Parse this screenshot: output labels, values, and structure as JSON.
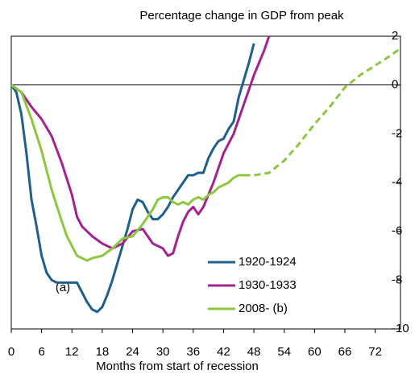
{
  "chart_data": {
    "type": "line",
    "title": "Percentage change in GDP from peak",
    "x_label": "Months from start of recession",
    "annotation": "(a)",
    "xlim": [
      0,
      77
    ],
    "xticks": [
      0,
      6,
      12,
      18,
      24,
      30,
      36,
      42,
      48,
      54,
      60,
      66,
      72
    ],
    "ylim": [
      -10,
      2
    ],
    "yticks": [
      2,
      0,
      -2,
      -4,
      -6,
      -8,
      -10
    ],
    "series": [
      {
        "name": "1920-1924",
        "color": "#1f5f8b",
        "x": [
          0,
          1,
          2,
          3,
          4,
          5,
          6,
          7,
          8,
          9,
          10,
          11,
          12,
          13,
          14,
          15,
          16,
          17,
          18,
          19,
          20,
          21,
          22,
          23,
          24,
          25,
          26,
          27,
          28,
          29,
          30,
          31,
          32,
          33,
          34,
          35,
          36,
          37,
          38,
          39,
          40,
          41,
          42,
          43,
          44,
          45,
          46,
          47,
          48
        ],
        "values": [
          0,
          -0.3,
          -1.2,
          -2.8,
          -4.7,
          -5.8,
          -7,
          -7.7,
          -8,
          -8.1,
          -8.1,
          -8.1,
          -8.1,
          -8.1,
          -8.5,
          -8.9,
          -9.2,
          -9.3,
          -9.1,
          -8.6,
          -8,
          -7.3,
          -6.6,
          -5.9,
          -5.1,
          -4.7,
          -4.8,
          -5.2,
          -5.5,
          -5.5,
          -5.3,
          -5,
          -4.6,
          -4.3,
          -4,
          -3.7,
          -3.7,
          -3.6,
          -3.6,
          -3,
          -2.6,
          -2.3,
          -2.2,
          -1.8,
          -1.5,
          -0.5,
          0.2,
          0.9,
          1.7
        ]
      },
      {
        "name": "1930-1933",
        "color": "#a3238e",
        "x": [
          0,
          2,
          4,
          6,
          8,
          10,
          12,
          13,
          14,
          16,
          18,
          20,
          22,
          24,
          26,
          27,
          28,
          30,
          31,
          32,
          33,
          34,
          35,
          36,
          37,
          38,
          39,
          40,
          41,
          42,
          43,
          44,
          45,
          46,
          47,
          48,
          49,
          50,
          51
        ],
        "values": [
          0,
          -0.3,
          -0.9,
          -1.4,
          -2.1,
          -3.2,
          -4.5,
          -5.4,
          -5.8,
          -6.2,
          -6.5,
          -6.7,
          -6.5,
          -6,
          -5.9,
          -6.2,
          -6.5,
          -6.7,
          -7,
          -6.9,
          -6.2,
          -5.6,
          -5.2,
          -5,
          -5.3,
          -5,
          -4.5,
          -4,
          -3.4,
          -2.8,
          -2.4,
          -2,
          -1.4,
          -0.8,
          -0.2,
          0.4,
          0.9,
          1.4,
          2
        ]
      },
      {
        "name": "2008- (b)",
        "color": "#8dc63f",
        "x": [
          0,
          2,
          4,
          6,
          8,
          10,
          11,
          12,
          13,
          15,
          16,
          18,
          20,
          22,
          24,
          26,
          28,
          29,
          30,
          31,
          32,
          33,
          34,
          35,
          36,
          37,
          38,
          39,
          40,
          41,
          43,
          44,
          45,
          46
        ],
        "values": [
          0,
          -0.3,
          -1.4,
          -2.7,
          -4.3,
          -5.6,
          -6.2,
          -6.6,
          -7,
          -7.2,
          -7.1,
          -7,
          -6.7,
          -6.3,
          -6.2,
          -5.7,
          -5.1,
          -4.7,
          -4.6,
          -4.6,
          -4.8,
          -4.9,
          -4.8,
          -4.9,
          -4.7,
          -4.6,
          -4.7,
          -4.5,
          -4.4,
          -4.2,
          -4,
          -3.8,
          -3.7,
          -3.7
        ]
      },
      {
        "color": "#8dc63f",
        "dashed": true,
        "x": [
          46,
          48,
          51,
          54,
          57,
          60,
          63,
          66,
          69,
          72,
          75,
          77
        ],
        "values": [
          -3.7,
          -3.7,
          -3.6,
          -3.1,
          -2.4,
          -1.6,
          -0.9,
          -0.1,
          0.4,
          0.8,
          1.2,
          1.5
        ]
      }
    ]
  }
}
